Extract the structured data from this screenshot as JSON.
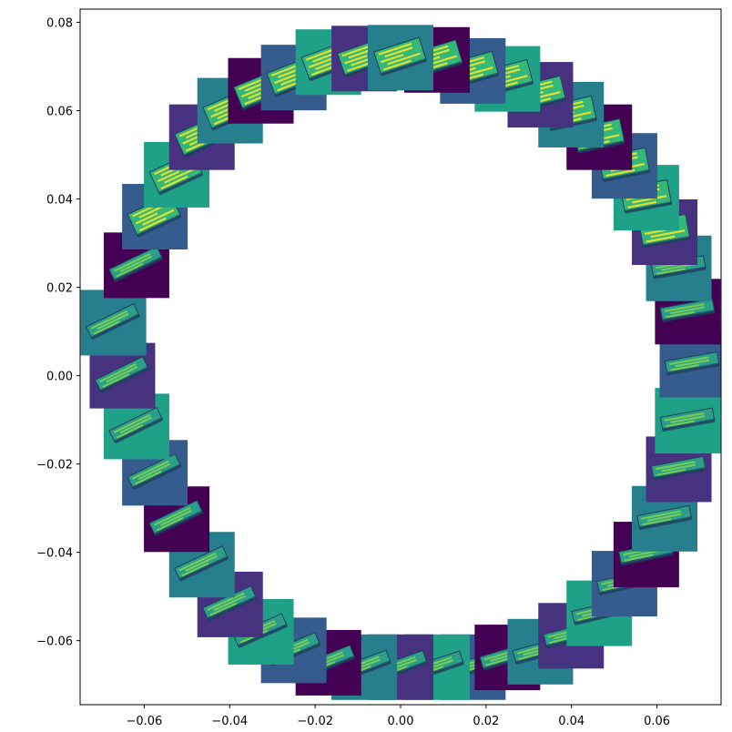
{
  "chart_data": {
    "type": "scatter",
    "title": "",
    "xlabel": "",
    "ylabel": "",
    "xlim": [
      -0.075,
      0.075
    ],
    "ylim": [
      -0.0745,
      0.083
    ],
    "x_ticks": [
      -0.06,
      -0.04,
      -0.02,
      0.0,
      0.02,
      0.04,
      0.06
    ],
    "x_tick_labels": [
      "−0.06",
      "−0.04",
      "−0.02",
      "0.00",
      "0.02",
      "0.04",
      "0.06"
    ],
    "y_ticks": [
      -0.06,
      -0.04,
      -0.02,
      0.0,
      0.02,
      0.04,
      0.06,
      0.08
    ],
    "y_tick_labels": [
      "−0.06",
      "−0.04",
      "−0.02",
      "0.00",
      "0.02",
      "0.04",
      "0.06",
      "0.08"
    ],
    "grid": false,
    "legend": "none",
    "marker": "image thumbnails of a rotating box, viridis colormap",
    "circle_center": [
      0.0,
      0.004
    ],
    "circle_radius": 0.068,
    "points": [
      {
        "x": 0.0,
        "y": 0.072
      },
      {
        "x": 0.0085,
        "y": 0.0715
      },
      {
        "x": 0.0169,
        "y": 0.069
      },
      {
        "x": 0.025,
        "y": 0.0672
      },
      {
        "x": 0.0327,
        "y": 0.0636
      },
      {
        "x": 0.0399,
        "y": 0.0591
      },
      {
        "x": 0.0465,
        "y": 0.054
      },
      {
        "x": 0.0524,
        "y": 0.0475
      },
      {
        "x": 0.0575,
        "y": 0.0403
      },
      {
        "x": 0.0618,
        "y": 0.0325
      },
      {
        "x": 0.0651,
        "y": 0.0243
      },
      {
        "x": 0.0672,
        "y": 0.0145
      },
      {
        "x": 0.0683,
        "y": 0.0025
      },
      {
        "x": 0.0672,
        "y": -0.0102
      },
      {
        "x": 0.0651,
        "y": -0.0212
      },
      {
        "x": 0.0618,
        "y": -0.0324
      },
      {
        "x": 0.0575,
        "y": -0.0405
      },
      {
        "x": 0.0524,
        "y": -0.0471
      },
      {
        "x": 0.0465,
        "y": -0.0538
      },
      {
        "x": 0.0399,
        "y": -0.0589
      },
      {
        "x": 0.0327,
        "y": -0.0625
      },
      {
        "x": 0.025,
        "y": -0.0638
      },
      {
        "x": 0.0169,
        "y": -0.066
      },
      {
        "x": 0.0085,
        "y": -0.066
      },
      {
        "x": 0.0,
        "y": -0.066
      },
      {
        "x": -0.0085,
        "y": -0.066
      },
      {
        "x": -0.0169,
        "y": -0.065
      },
      {
        "x": -0.025,
        "y": -0.0622
      },
      {
        "x": -0.0327,
        "y": -0.058
      },
      {
        "x": -0.0399,
        "y": -0.0518
      },
      {
        "x": -0.0465,
        "y": -0.0428
      },
      {
        "x": -0.0524,
        "y": -0.0325
      },
      {
        "x": -0.0575,
        "y": -0.022
      },
      {
        "x": -0.0618,
        "y": -0.0115
      },
      {
        "x": -0.0651,
        "y": 0.0
      },
      {
        "x": -0.0672,
        "y": 0.012
      },
      {
        "x": -0.0618,
        "y": 0.025
      },
      {
        "x": -0.0575,
        "y": 0.036
      },
      {
        "x": -0.0524,
        "y": 0.0455
      },
      {
        "x": -0.0465,
        "y": 0.054
      },
      {
        "x": -0.0399,
        "y": 0.06
      },
      {
        "x": -0.0327,
        "y": 0.0645
      },
      {
        "x": -0.025,
        "y": 0.0675
      },
      {
        "x": -0.0169,
        "y": 0.071
      },
      {
        "x": -0.0085,
        "y": 0.0718
      }
    ],
    "colors": {
      "tile_backgrounds": [
        "#440154",
        "#46327e",
        "#365c8d",
        "#277f8e",
        "#1fa187"
      ],
      "box_fill": "#35b779",
      "box_highlight": "#fde725",
      "axis": "#000000"
    }
  }
}
